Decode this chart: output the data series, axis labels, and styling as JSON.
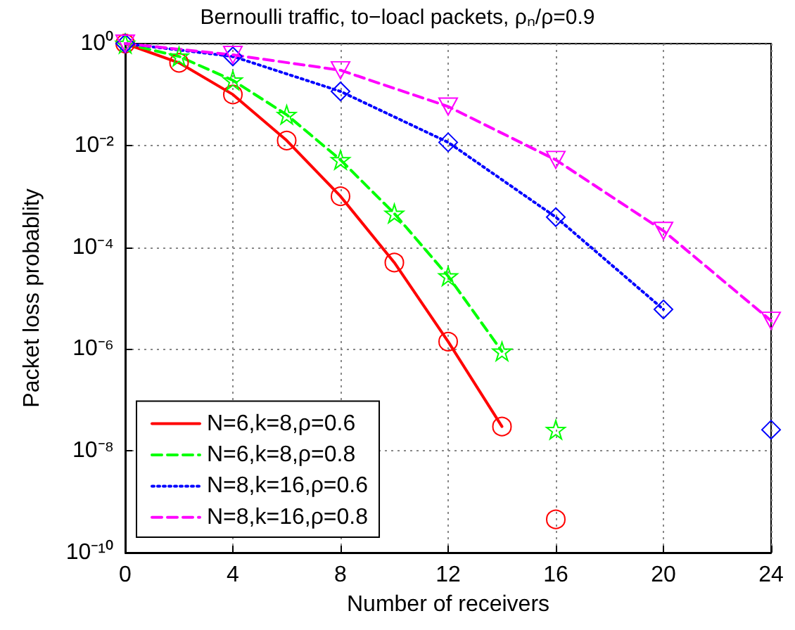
{
  "chart_data": {
    "type": "line",
    "title": "Bernoulli traffic, to−loacl packets, ρₙ/ρ=0.9",
    "xlabel": "Number of receivers",
    "ylabel": "Packet loss probablity",
    "xlim": [
      0,
      24
    ],
    "xticks": [
      0,
      4,
      8,
      12,
      16,
      20,
      24
    ],
    "ylim": [
      1e-10,
      1
    ],
    "yticks": [
      {
        "value": 1e-10,
        "label": "10⁻¹⁰"
      },
      {
        "value": 1e-08,
        "label": "10⁻⁸"
      },
      {
        "value": 1e-06,
        "label": "10⁻⁶"
      },
      {
        "value": 0.0001,
        "label": "10⁻⁴"
      },
      {
        "value": 0.01,
        "label": "10⁻²"
      },
      {
        "value": 1,
        "label": "10⁰"
      }
    ],
    "log": "y",
    "grid": true,
    "legend": "bottom left",
    "series": [
      {
        "name": "N=6,k=8,ρ=0.6",
        "color": "#ff0000",
        "marker": "circle",
        "line_style": "solid",
        "x": [
          0,
          2,
          4,
          6,
          8,
          10,
          12,
          14
        ],
        "values": [
          1,
          0.42,
          0.1,
          0.0125,
          0.001,
          5e-05,
          1.4e-06,
          3e-08
        ]
      },
      {
        "name": "N=6,k=8,ρ=0.8",
        "color": "#00ff00",
        "marker": "star",
        "line_style": "dashed",
        "x": [
          0,
          2,
          4,
          6,
          8,
          10,
          12,
          14
        ],
        "values": [
          1,
          0.56,
          0.19,
          0.04,
          0.0052,
          0.00046,
          2.7e-05,
          9e-07
        ]
      },
      {
        "name": "N=8,k=16,ρ=0.6",
        "color": "#0000ff",
        "marker": "diamond",
        "line_style": "dotted",
        "x": [
          0,
          4,
          8,
          12,
          16,
          20
        ],
        "values": [
          1,
          0.56,
          0.115,
          0.0115,
          0.00039,
          6e-06
        ]
      },
      {
        "name": "N=8,k=16,ρ=0.8",
        "color": "#ff00ff",
        "marker": "triangle",
        "line_style": "dashed",
        "x": [
          0,
          4,
          8,
          12,
          16,
          20,
          24
        ],
        "values": [
          1,
          0.6,
          0.3,
          0.058,
          0.0052,
          0.00021,
          3.6e-06
        ]
      },
      {
        "type": "scatter",
        "color": "#ff0000",
        "marker": "circle",
        "x": [
          16
        ],
        "values": [
          4.5e-10
        ]
      },
      {
        "type": "scatter",
        "color": "#00ff00",
        "marker": "star",
        "x": [
          16
        ],
        "values": [
          2.6e-08
        ]
      },
      {
        "type": "scatter",
        "color": "#0000ff",
        "marker": "diamond",
        "x": [
          24
        ],
        "values": [
          2.6e-08
        ]
      }
    ]
  }
}
